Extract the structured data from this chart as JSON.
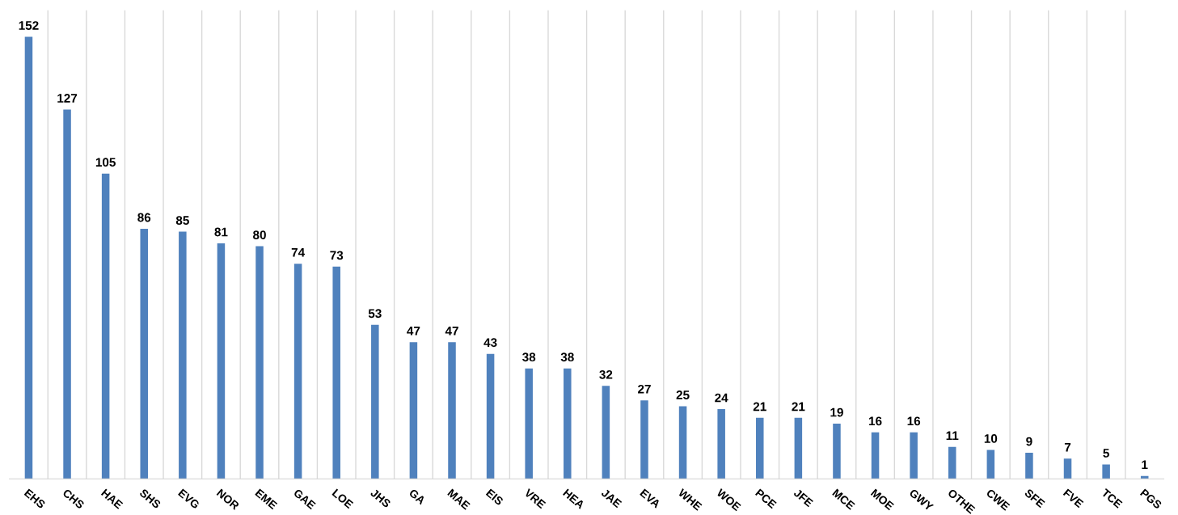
{
  "chart_data": {
    "type": "bar",
    "categories": [
      "EHS",
      "CHS",
      "HAE",
      "SHS",
      "EVG",
      "NOR",
      "EME",
      "GAE",
      "LOE",
      "JHS",
      "GA",
      "MAE",
      "EIS",
      "VRE",
      "HEA",
      "JAE",
      "EVA",
      "WHE",
      "WOE",
      "PCE",
      "JFE",
      "MCE",
      "MOE",
      "GWY",
      "OTHE",
      "CWE",
      "SFE",
      "FVE",
      "TCE",
      "PGS"
    ],
    "values": [
      152,
      127,
      105,
      86,
      85,
      81,
      80,
      74,
      73,
      53,
      47,
      47,
      43,
      38,
      38,
      32,
      27,
      25,
      24,
      21,
      21,
      19,
      16,
      16,
      11,
      10,
      9,
      7,
      5,
      1
    ],
    "color": "#4f81bd",
    "data_labels": true,
    "grid": "x"
  }
}
